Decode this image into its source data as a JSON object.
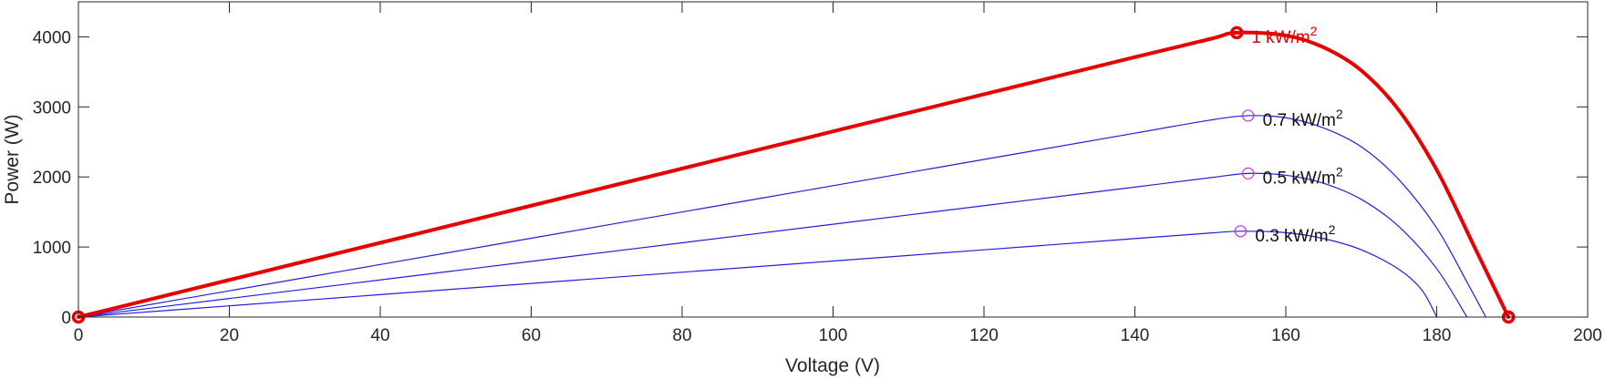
{
  "chart_data": {
    "type": "line",
    "title": "",
    "xlabel": "Voltage (V)",
    "ylabel": "Power (W)",
    "xlim": [
      0,
      200
    ],
    "ylim": [
      0,
      4500
    ],
    "xticks": [
      0,
      20,
      40,
      60,
      80,
      100,
      120,
      140,
      160,
      180,
      200
    ],
    "yticks": [
      0,
      1000,
      2000,
      3000,
      4000
    ],
    "grid": false,
    "legend": "none",
    "series": [
      {
        "label_base": "1 kW/m",
        "label_sup": "2",
        "color": "#e60000",
        "emphasis": true,
        "x": [
          0,
          20,
          40,
          60,
          80,
          100,
          120,
          140,
          150,
          153.5,
          160,
          165,
          170,
          175,
          180,
          185,
          189.5
        ],
        "y": [
          0,
          530,
          1060,
          1590,
          2120,
          2650,
          3180,
          3710,
          3970,
          4060,
          4020,
          3850,
          3520,
          2950,
          2100,
          1000,
          0
        ],
        "mpp": {
          "x": 153.5,
          "y": 4060
        },
        "voc": {
          "x": 189.5,
          "y": 0
        },
        "isc_point": {
          "x": 0,
          "y": 0
        }
      },
      {
        "label_base": "0.7 kW/m",
        "label_sup": "2",
        "color": "#1f1fdf",
        "x": [
          0,
          20,
          40,
          60,
          80,
          100,
          120,
          140,
          150,
          155,
          160,
          165,
          170,
          175,
          180,
          184,
          186.5
        ],
        "y": [
          0,
          375,
          750,
          1125,
          1500,
          1875,
          2250,
          2625,
          2812,
          2875,
          2845,
          2700,
          2430,
          1960,
          1270,
          500,
          0
        ],
        "mpp": {
          "x": 155,
          "y": 2875
        }
      },
      {
        "label_base": "0.5 kW/m",
        "label_sup": "2",
        "color": "#1f1fdf",
        "x": [
          0,
          20,
          40,
          60,
          80,
          100,
          120,
          140,
          150,
          155,
          160,
          165,
          170,
          175,
          180,
          184
        ],
        "y": [
          0,
          265,
          530,
          795,
          1060,
          1325,
          1590,
          1855,
          1990,
          2050,
          2025,
          1910,
          1680,
          1290,
          690,
          0
        ],
        "mpp": {
          "x": 155,
          "y": 2050
        }
      },
      {
        "label_base": "0.3 kW/m",
        "label_sup": "2",
        "color": "#1f1fdf",
        "x": [
          0,
          20,
          40,
          60,
          80,
          100,
          120,
          140,
          150,
          154,
          160,
          165,
          170,
          175,
          178,
          180
        ],
        "y": [
          0,
          160,
          320,
          480,
          640,
          800,
          960,
          1120,
          1200,
          1225,
          1205,
          1120,
          960,
          680,
          390,
          0
        ],
        "mpp": {
          "x": 154,
          "y": 1225
        }
      }
    ]
  }
}
